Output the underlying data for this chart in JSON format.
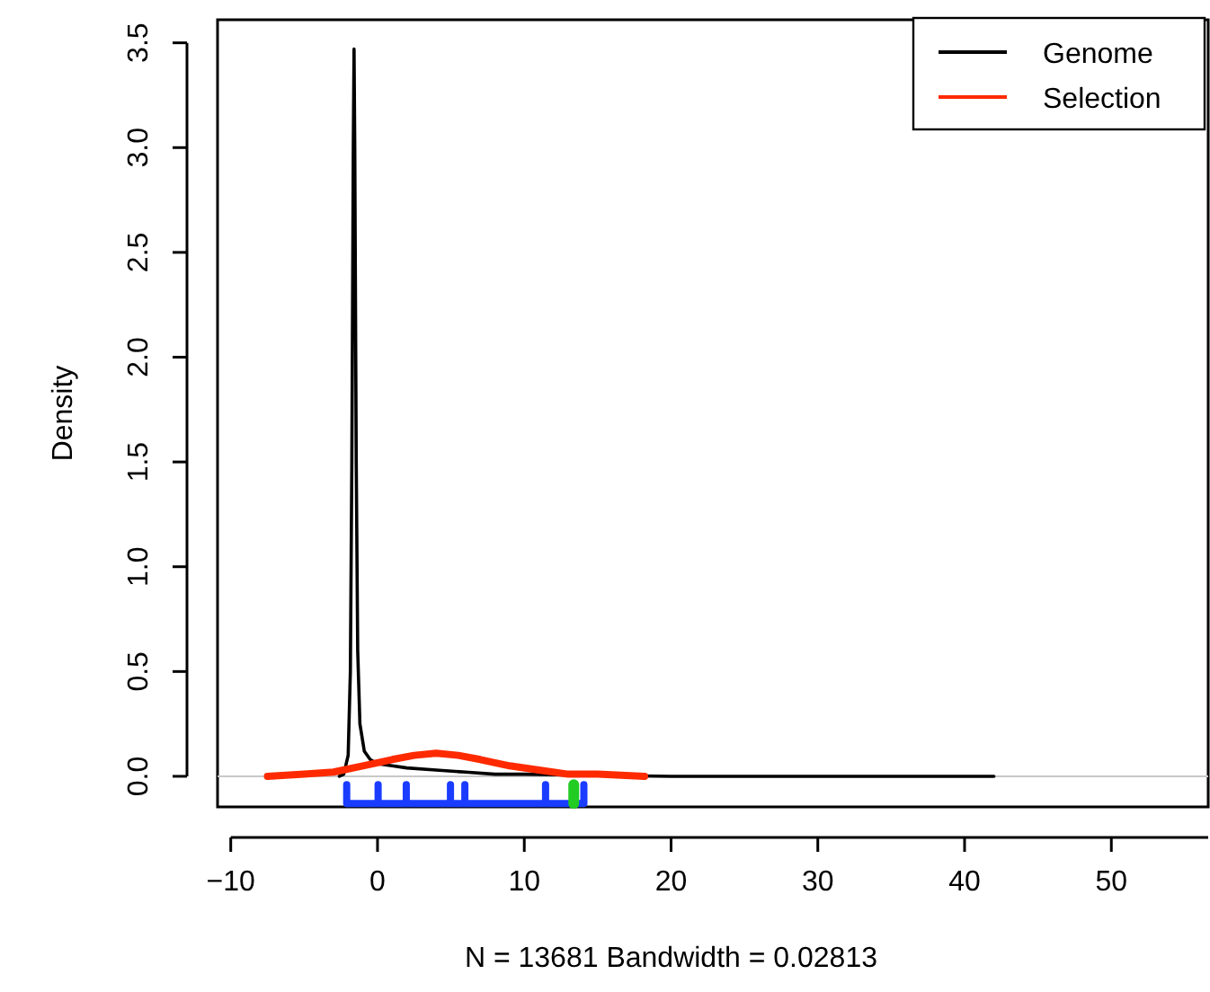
{
  "chart_data": {
    "type": "line",
    "xlabel": "N = 13681   Bandwidth = 0.02813",
    "ylabel": "Density",
    "xlim": [
      -10.9,
      56.6
    ],
    "ylim": [
      -0.146,
      3.61
    ],
    "xticks": [
      {
        "value": -10,
        "label": "−10"
      },
      0,
      10,
      20,
      30,
      40,
      50
    ],
    "yticks": [
      {
        "value": 0,
        "label": "0.0"
      },
      {
        "value": 0.5,
        "label": "0.5"
      },
      {
        "value": 1,
        "label": "1.0"
      },
      {
        "value": 1.5,
        "label": "1.5"
      },
      {
        "value": 2,
        "label": "2.0"
      },
      {
        "value": 2.5,
        "label": "2.5"
      },
      {
        "value": 3,
        "label": "3.0"
      },
      {
        "value": 3.5,
        "label": "3.5"
      }
    ],
    "grid": false,
    "legend": "top right",
    "marker": "none",
    "line_style": "solid",
    "ref_lines": [
      {
        "axis": "y",
        "value": 0,
        "color": "#c8c8c8"
      }
    ],
    "series": [
      {
        "name": "Genome",
        "color": "#000000",
        "x": [
          -2.6,
          -2.3,
          -2.0,
          -1.85,
          -1.75,
          -1.65,
          -1.6,
          -1.55,
          -1.45,
          -1.35,
          -1.2,
          -0.9,
          -0.5,
          0,
          1,
          2,
          4,
          6,
          8,
          10,
          20,
          30,
          42
        ],
        "values": [
          0,
          0.01,
          0.1,
          0.5,
          1.5,
          3.0,
          3.47,
          3.0,
          1.5,
          0.6,
          0.25,
          0.12,
          0.08,
          0.06,
          0.05,
          0.04,
          0.03,
          0.02,
          0.01,
          0.01,
          0,
          0,
          0
        ]
      },
      {
        "name": "Selection",
        "color": "#ff2a00",
        "x": [
          -7.5,
          -5,
          -3,
          -1,
          1,
          2.5,
          4,
          5.5,
          7,
          9,
          11,
          13,
          15,
          18.2
        ],
        "values": [
          0,
          0.01,
          0.02,
          0.05,
          0.08,
          0.1,
          0.11,
          0.1,
          0.08,
          0.05,
          0.03,
          0.01,
          0.01,
          0
        ]
      },
      {
        "color": "#1a3cff",
        "x": [
          -2.1,
          -2.1,
          0.04,
          0.04,
          0.04,
          1.96,
          1.96,
          1.96,
          4.97,
          4.97,
          4.97,
          5.95,
          5.95,
          5.95,
          11.45,
          11.45,
          11.45,
          14.06,
          14.06
        ],
        "values": [
          -0.04,
          -0.13,
          -0.13,
          -0.04,
          -0.13,
          -0.13,
          -0.04,
          -0.13,
          -0.13,
          -0.04,
          -0.13,
          -0.13,
          -0.04,
          -0.13,
          -0.13,
          -0.04,
          -0.13,
          -0.13,
          -0.04
        ]
      },
      {
        "color": "#22cc22",
        "x": [
          13.37,
          13.37
        ],
        "values": [
          -0.04,
          -0.13
        ]
      }
    ]
  }
}
